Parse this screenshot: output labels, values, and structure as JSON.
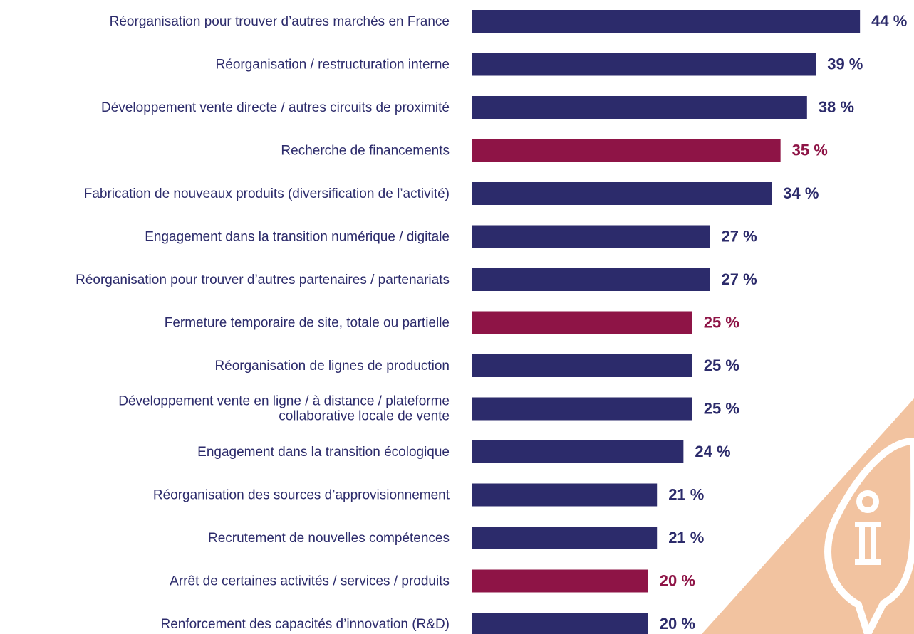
{
  "chart_data": {
    "type": "hbar",
    "categories": [
      "Réorganisation pour trouver d’autres marchés en France",
      "Réorganisation / restructuration interne",
      "Développement vente directe / autres circuits de proximité",
      "Recherche de financements",
      "Fabrication de nouveaux produits (diversification de l’activité)",
      "Engagement dans la transition numérique / digitale",
      "Réorganisation pour trouver d’autres partenaires / partenariats",
      "Fermeture temporaire de site, totale ou partielle",
      "Réorganisation de lignes de production",
      [
        "Développement vente en ligne / à distance / plateforme",
        "collaborative locale de vente"
      ],
      "Engagement dans la transition écologique",
      "Réorganisation des sources d’approvisionnement",
      "Recrutement de nouvelles compétences",
      "Arrêt de certaines activités / services / produits",
      "Renforcement des capacités d’innovation (R&D)"
    ],
    "values": [
      44,
      39,
      38,
      35,
      34,
      27,
      27,
      25,
      25,
      25,
      24,
      21,
      21,
      20,
      20
    ],
    "value_labels": [
      "44 %",
      "39 %",
      "38 %",
      "35 %",
      "34 %",
      "27 %",
      "27 %",
      "25 %",
      "25 %",
      "25 %",
      "24 %",
      "21 %",
      "21 %",
      "20 %",
      "20 %"
    ],
    "colors": [
      "#2c2b6b",
      "#2c2b6b",
      "#2c2b6b",
      "#8e1446",
      "#2c2b6b",
      "#2c2b6b",
      "#2c2b6b",
      "#8e1446",
      "#2c2b6b",
      "#2c2b6b",
      "#2c2b6b",
      "#2c2b6b",
      "#2c2b6b",
      "#8e1446",
      "#2c2b6b"
    ]
  }
}
